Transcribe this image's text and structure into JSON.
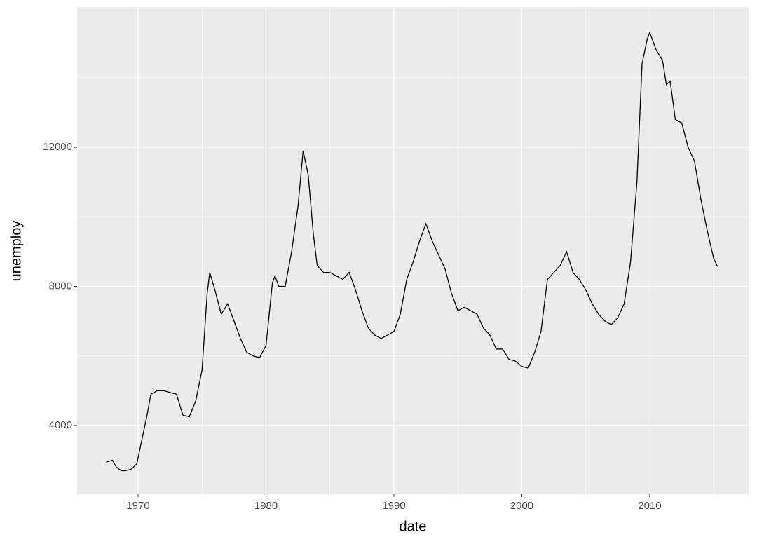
{
  "chart_data": {
    "type": "line",
    "x_label": "date",
    "y_label": "unemploy",
    "series": [
      {
        "name": "unemploy",
        "color": "#000000",
        "x": [
          1967.5,
          1968.0,
          1968.3,
          1968.7,
          1969.0,
          1969.5,
          1969.9,
          1970.3,
          1970.7,
          1971.0,
          1971.5,
          1972.0,
          1972.5,
          1973.0,
          1973.5,
          1974.0,
          1974.5,
          1975.0,
          1975.4,
          1975.6,
          1976.0,
          1976.5,
          1977.0,
          1977.5,
          1978.0,
          1978.5,
          1979.0,
          1979.5,
          1980.0,
          1980.5,
          1980.7,
          1981.0,
          1981.5,
          1982.0,
          1982.5,
          1982.9,
          1983.3,
          1983.7,
          1984.0,
          1984.5,
          1985.0,
          1985.5,
          1986.0,
          1986.5,
          1987.0,
          1987.5,
          1988.0,
          1988.5,
          1989.0,
          1989.5,
          1990.0,
          1990.5,
          1991.0,
          1991.5,
          1992.0,
          1992.5,
          1993.0,
          1993.5,
          1994.0,
          1994.5,
          1995.0,
          1995.5,
          1996.0,
          1996.5,
          1997.0,
          1997.5,
          1998.0,
          1998.5,
          1999.0,
          1999.5,
          2000.0,
          2000.5,
          2001.0,
          2001.5,
          2002.0,
          2002.5,
          2003.0,
          2003.5,
          2004.0,
          2004.5,
          2005.0,
          2005.5,
          2006.0,
          2006.5,
          2007.0,
          2007.5,
          2008.0,
          2008.5,
          2009.0,
          2009.4,
          2009.8,
          2010.0,
          2010.5,
          2011.0,
          2011.3,
          2011.6,
          2012.0,
          2012.5,
          2013.0,
          2013.5,
          2014.0,
          2014.5,
          2015.0,
          2015.3
        ],
        "values": [
          2945,
          3000,
          2800,
          2700,
          2700,
          2750,
          2900,
          3600,
          4300,
          4900,
          5000,
          5000,
          4950,
          4900,
          4300,
          4250,
          4700,
          5600,
          7800,
          8400,
          7900,
          7200,
          7500,
          7000,
          6500,
          6100,
          6000,
          5950,
          6300,
          8100,
          8300,
          8000,
          8000,
          9000,
          10300,
          11900,
          11200,
          9500,
          8600,
          8400,
          8400,
          8300,
          8200,
          8400,
          7900,
          7300,
          6800,
          6600,
          6500,
          6600,
          6700,
          7200,
          8200,
          8700,
          9300,
          9800,
          9300,
          8900,
          8500,
          7800,
          7300,
          7400,
          7300,
          7200,
          6800,
          6600,
          6200,
          6200,
          5900,
          5850,
          5700,
          5650,
          6100,
          6700,
          8200,
          8400,
          8600,
          9000,
          8400,
          8200,
          7900,
          7500,
          7200,
          7000,
          6900,
          7100,
          7500,
          8700,
          11000,
          14400,
          15100,
          15300,
          14800,
          14500,
          13800,
          13900,
          12800,
          12700,
          12000,
          11600,
          10500,
          9600,
          8800,
          8575
        ]
      }
    ],
    "xlim": [
      1965.23,
      2017.73
    ],
    "xticks": [
      1970,
      1980,
      1990,
      2000,
      2010
    ],
    "x_minor_ticks": [
      1965,
      1975,
      1985,
      1995,
      2005,
      2015
    ],
    "ylim": [
      2024,
      16032
    ],
    "yticks": [
      4000,
      8000,
      12000
    ],
    "y_minor_ticks": [
      6000,
      10000,
      14000
    ],
    "grid": true
  }
}
